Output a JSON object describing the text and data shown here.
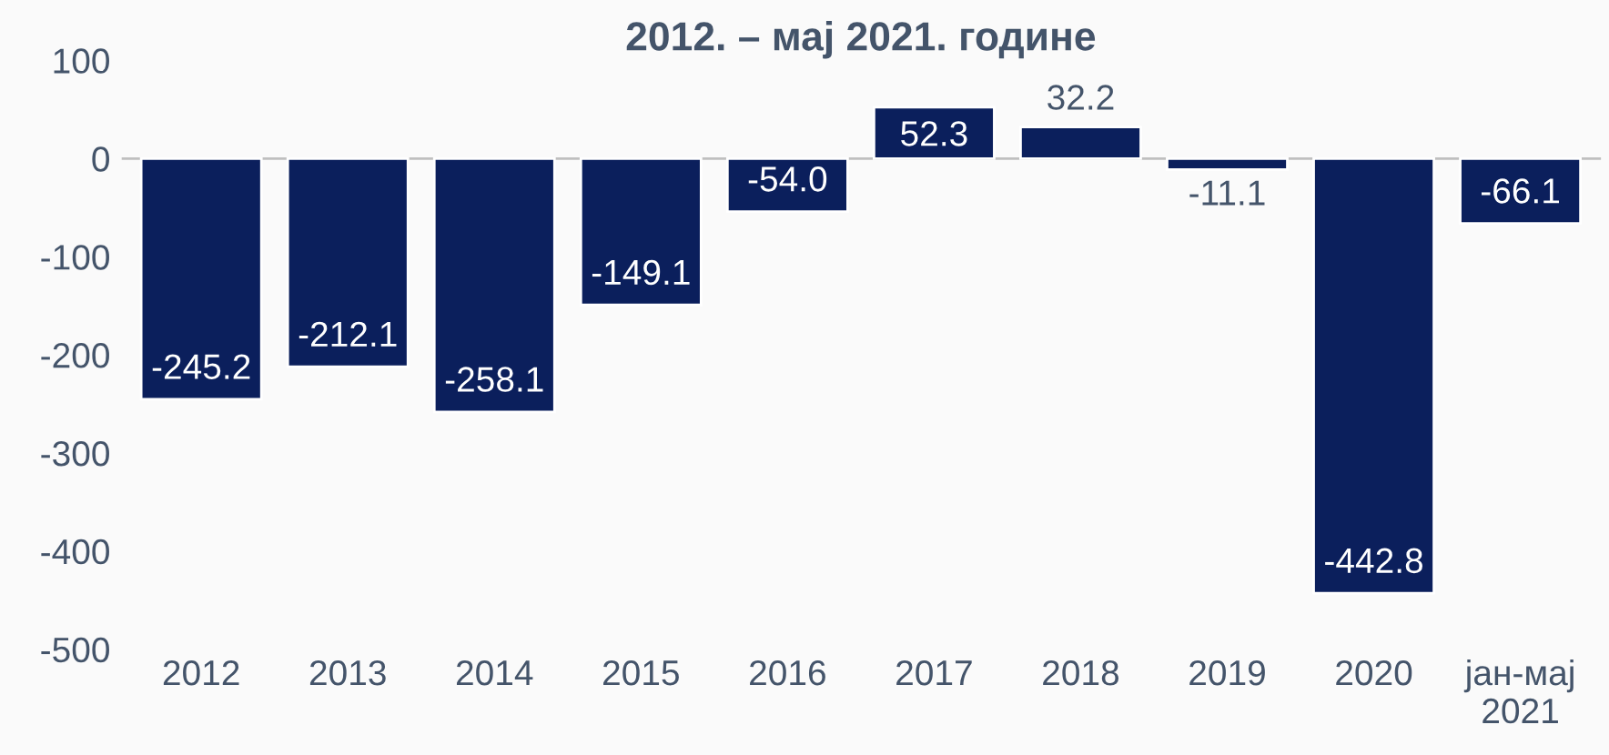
{
  "chart_data": {
    "type": "bar",
    "title": "2012. – мај 2021. године",
    "categories": [
      "2012",
      "2013",
      "2014",
      "2015",
      "2016",
      "2017",
      "2018",
      "2019",
      "2020",
      "јан-мај\n2021"
    ],
    "values": [
      -245.2,
      -212.1,
      -258.1,
      -149.1,
      -54.0,
      52.3,
      32.2,
      -11.1,
      -442.8,
      -66.1
    ],
    "color": "#0b1f5c",
    "ylim": [
      -500,
      100
    ],
    "yticks": [
      -500,
      -400,
      -300,
      -200,
      -100,
      0,
      100
    ],
    "grid": false,
    "ref_lines": [
      {
        "axis": "y",
        "value": 0,
        "color": "#bfbfbf"
      }
    ],
    "value_labels": [
      "-245.2",
      "-212.1",
      "-258.1",
      "-149.1",
      "-54.0",
      "52.3",
      "32.2",
      "-11.1",
      "-442.8",
      "-66.1"
    ]
  }
}
